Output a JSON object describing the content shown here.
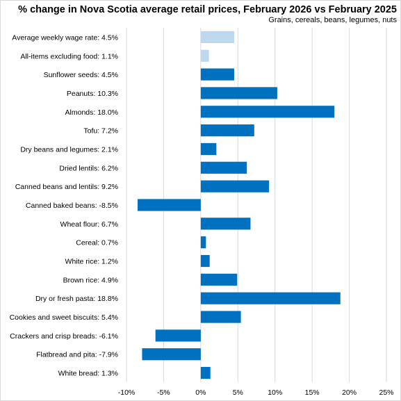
{
  "chart_data": {
    "type": "bar",
    "orientation": "horizontal",
    "title": "% change in Nova Scotia average retail prices, February 2026 vs February 2025",
    "subtitle": "Grains, cereals, beans, legumes, nuts",
    "categories": [
      "Average weekly wage rate: 4.5%",
      "All-items excluding food: 1.1%",
      "Sunflower seeds: 4.5%",
      "Peanuts: 10.3%",
      "Almonds: 18.0%",
      "Tofu: 7.2%",
      "Dry beans and legumes: 2.1%",
      "Dried lentils: 6.2%",
      "Canned beans and lentils: 9.2%",
      "Canned baked beans: -8.5%",
      "Wheat flour: 6.7%",
      "Cereal: 0.7%",
      "White rice: 1.2%",
      "Brown rice: 4.9%",
      "Dry or fresh pasta: 18.8%",
      "Cookies and sweet biscuits: 5.4%",
      "Crackers and crisp breads: -6.1%",
      "Flatbread and pita: -7.9%",
      "White bread: 1.3%"
    ],
    "values": [
      4.5,
      1.1,
      4.5,
      10.3,
      18.0,
      7.2,
      2.1,
      6.2,
      9.2,
      -8.5,
      6.7,
      0.7,
      1.2,
      4.9,
      18.8,
      5.4,
      -6.1,
      -7.9,
      1.3
    ],
    "highlight_indices": [
      0,
      1
    ],
    "colors": {
      "bar": "#0070C0",
      "highlight": "#BDD7EE",
      "grid": "#d9d9d9"
    },
    "xlim": [
      -10,
      25
    ],
    "xticks": [
      -10,
      -5,
      0,
      5,
      10,
      15,
      20,
      25
    ],
    "xtick_labels": [
      "-10%",
      "-5%",
      "0%",
      "5%",
      "10%",
      "15%",
      "20%",
      "25%"
    ],
    "grid": "vertical",
    "legend": "none"
  }
}
